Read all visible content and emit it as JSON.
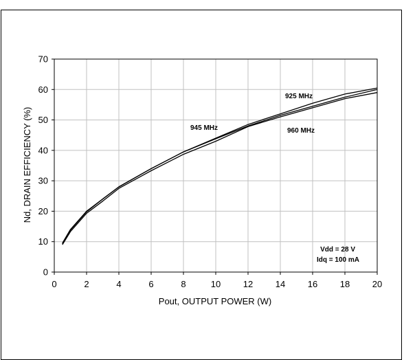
{
  "chart_data": {
    "type": "line",
    "xlabel": "Pout, OUTPUT POWER  (W)",
    "ylabel": "Nd, DRAIN EFFICIENCY  (%)",
    "xlim": [
      0,
      20
    ],
    "ylim": [
      0,
      70
    ],
    "xticks": [
      "0",
      "2",
      "4",
      "6",
      "8",
      "10",
      "12",
      "14",
      "16",
      "18",
      "20"
    ],
    "yticks": [
      "0",
      "10",
      "20",
      "30",
      "40",
      "50",
      "60",
      "70"
    ],
    "grid": true,
    "line_color": "#000000",
    "grid_color": "#c0c0c0",
    "series": [
      {
        "name": "925 MHz",
        "x": [
          0.5,
          1,
          2,
          3,
          4,
          6,
          8,
          10,
          12,
          14,
          16,
          18,
          20
        ],
        "y": [
          9.5,
          14,
          20,
          24,
          28,
          34,
          39.5,
          44,
          48.5,
          52,
          55.5,
          58.5,
          60.5
        ]
      },
      {
        "name": "945 MHz",
        "x": [
          0.5,
          1,
          2,
          3,
          4,
          6,
          8,
          10,
          12,
          14,
          16,
          18,
          20
        ],
        "y": [
          9.3,
          13.8,
          19.8,
          24,
          28,
          34,
          39.5,
          43.8,
          48,
          51.5,
          54.5,
          57.5,
          60
        ]
      },
      {
        "name": "960 MHz",
        "x": [
          0.5,
          1,
          2,
          3,
          4,
          6,
          8,
          10,
          12,
          14,
          16,
          18,
          20
        ],
        "y": [
          9,
          13.3,
          19.3,
          23.3,
          27.5,
          33.3,
          38.7,
          43,
          47.8,
          51,
          54,
          57,
          59
        ]
      }
    ],
    "annotations": {
      "label_925": "925 MHz",
      "label_945": "945 MHz",
      "label_960": "960 MHz",
      "vdd": "Vdd = 28 V",
      "idq": "Idq = 100 mA"
    }
  }
}
